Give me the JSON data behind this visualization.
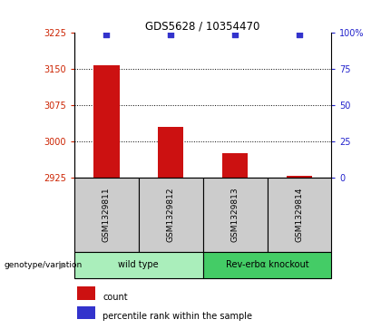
{
  "title": "GDS5628 / 10354470",
  "samples": [
    "GSM1329811",
    "GSM1329812",
    "GSM1329813",
    "GSM1329814"
  ],
  "counts": [
    3158,
    3030,
    2975,
    2928
  ],
  "percentile_ranks": [
    99,
    99,
    99,
    99
  ],
  "ylim_left": [
    2925,
    3225
  ],
  "ylim_right": [
    0,
    100
  ],
  "yticks_left": [
    2925,
    3000,
    3075,
    3150,
    3225
  ],
  "yticks_right": [
    0,
    25,
    50,
    75,
    100
  ],
  "ytick_labels_right": [
    "0",
    "25",
    "50",
    "75",
    "100%"
  ],
  "bar_color": "#cc1111",
  "dot_color": "#3333cc",
  "groups": [
    {
      "label": "wild type",
      "indices": [
        0,
        1
      ],
      "color": "#aaeebb"
    },
    {
      "label": "Rev-erbα knockout",
      "indices": [
        2,
        3
      ],
      "color": "#44cc66"
    }
  ],
  "legend_count_label": "count",
  "legend_pct_label": "percentile rank within the sample",
  "genotype_label": "genotype/variation",
  "left_tick_color": "#cc2200",
  "right_tick_color": "#2222cc",
  "sample_box_color": "#cccccc",
  "bar_width": 0.4
}
